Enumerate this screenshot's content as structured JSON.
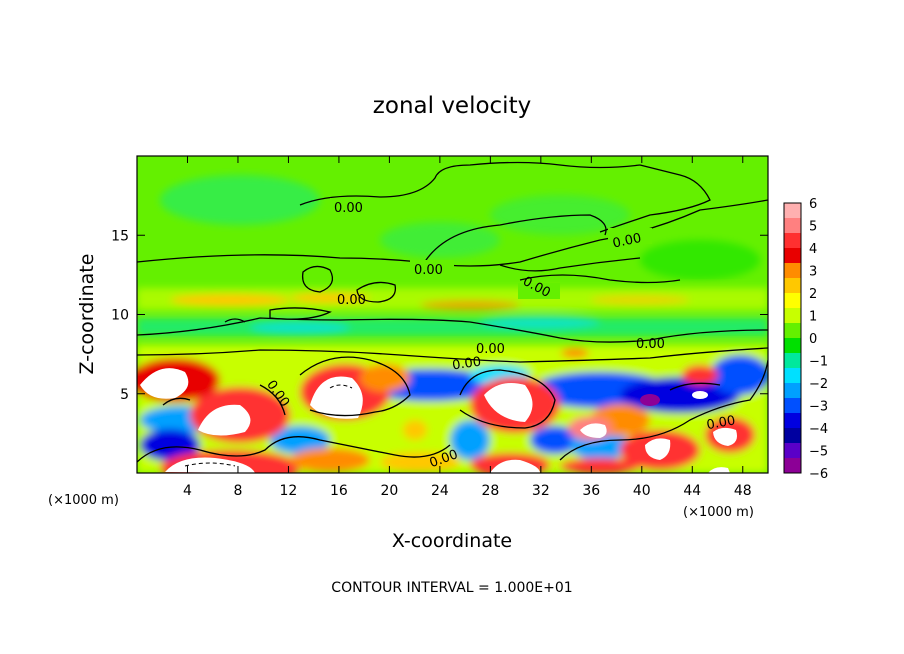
{
  "chart_data": {
    "type": "heatmap",
    "title": "zonal velocity",
    "xlabel": "X-coordinate",
    "ylabel": "Z-coordinate",
    "x_unit": "(×1000 m)",
    "z_unit": "(×1000 m)",
    "xlim": [
      0,
      50
    ],
    "zlim": [
      0,
      20
    ],
    "x_ticks": [
      "4",
      "8",
      "12",
      "16",
      "20",
      "24",
      "28",
      "32",
      "36",
      "40",
      "44",
      "48"
    ],
    "z_ticks": [
      "5",
      "10",
      "15"
    ],
    "colorbar": {
      "ticks": [
        "6",
        "5",
        "4",
        "3",
        "2",
        "1",
        "0",
        "−1",
        "−2",
        "−3",
        "−4",
        "−5",
        "−6"
      ],
      "colors": [
        "#ffb0b0",
        "#ff8080",
        "#ff3030",
        "#e80000",
        "#ff8c00",
        "#ffc800",
        "#ffff00",
        "#c8ff00",
        "#64f000",
        "#00e000",
        "#00e89c",
        "#00e0ff",
        "#00a0ff",
        "#0050ff",
        "#0000e0",
        "#0000a0",
        "#5a00c8",
        "#8c0096"
      ]
    },
    "contour_labels": [
      "0.00",
      "0.00",
      "0.00",
      "0.00",
      "0.00",
      "0.00",
      "0.00",
      "0.00",
      "0.00",
      "0.00",
      "0.00"
    ],
    "contour_interval": "CONTOUR INTERVAL = 1.000E+01"
  }
}
